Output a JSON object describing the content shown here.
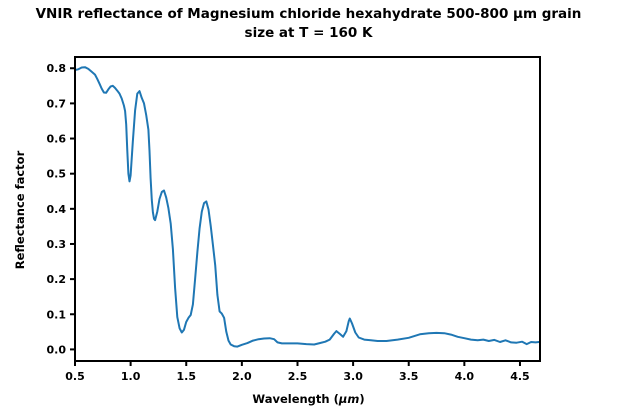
{
  "figure": {
    "title_line1": "VNIR reflectance of Magnesium chloride hexahydrate 500-800 μm grain",
    "title_line2": "size at T = 160 K"
  },
  "chart_data": {
    "type": "line",
    "title": "VNIR reflectance of Magnesium chloride hexahydrate 500-800 μm grain size at T = 160 K",
    "xlabel": "Wavelength (μm)",
    "xlabel_parts": {
      "prefix": "Wavelength (",
      "italic": "μm",
      "suffix": ")"
    },
    "ylabel": "Reflectance factor",
    "xlim": [
      0.5,
      4.68
    ],
    "ylim": [
      -0.033,
      0.832
    ],
    "xticks": [
      0.5,
      1.0,
      1.5,
      2.0,
      2.5,
      3.0,
      3.5,
      4.0,
      4.5
    ],
    "xtick_labels": [
      "0.5",
      "1.0",
      "1.5",
      "2.0",
      "2.5",
      "3.0",
      "3.5",
      "4.0",
      "4.5"
    ],
    "yticks": [
      0.0,
      0.1,
      0.2,
      0.3,
      0.4,
      0.5,
      0.6,
      0.7,
      0.8
    ],
    "ytick_labels": [
      "0.0",
      "0.1",
      "0.2",
      "0.3",
      "0.4",
      "0.5",
      "0.6",
      "0.7",
      "0.8"
    ],
    "grid": false,
    "legend": null,
    "line_color": "#1f77b4",
    "line_width": 2,
    "axis_color": "#000000",
    "series": [
      {
        "name": "reflectance",
        "points": [
          [
            0.5,
            0.795
          ],
          [
            0.53,
            0.797
          ],
          [
            0.56,
            0.802
          ],
          [
            0.59,
            0.803
          ],
          [
            0.62,
            0.798
          ],
          [
            0.65,
            0.79
          ],
          [
            0.68,
            0.782
          ],
          [
            0.7,
            0.77
          ],
          [
            0.72,
            0.756
          ],
          [
            0.74,
            0.742
          ],
          [
            0.76,
            0.731
          ],
          [
            0.78,
            0.73
          ],
          [
            0.8,
            0.74
          ],
          [
            0.82,
            0.748
          ],
          [
            0.84,
            0.75
          ],
          [
            0.86,
            0.744
          ],
          [
            0.88,
            0.736
          ],
          [
            0.9,
            0.728
          ],
          [
            0.92,
            0.714
          ],
          [
            0.94,
            0.694
          ],
          [
            0.95,
            0.678
          ],
          [
            0.96,
            0.64
          ],
          [
            0.97,
            0.565
          ],
          [
            0.98,
            0.5
          ],
          [
            0.99,
            0.478
          ],
          [
            1.0,
            0.495
          ],
          [
            1.02,
            0.59
          ],
          [
            1.04,
            0.68
          ],
          [
            1.06,
            0.728
          ],
          [
            1.08,
            0.735
          ],
          [
            1.1,
            0.716
          ],
          [
            1.12,
            0.7
          ],
          [
            1.14,
            0.667
          ],
          [
            1.16,
            0.625
          ],
          [
            1.17,
            0.565
          ],
          [
            1.18,
            0.487
          ],
          [
            1.19,
            0.425
          ],
          [
            1.2,
            0.39
          ],
          [
            1.21,
            0.372
          ],
          [
            1.22,
            0.368
          ],
          [
            1.24,
            0.392
          ],
          [
            1.26,
            0.428
          ],
          [
            1.28,
            0.448
          ],
          [
            1.3,
            0.452
          ],
          [
            1.32,
            0.432
          ],
          [
            1.34,
            0.402
          ],
          [
            1.36,
            0.358
          ],
          [
            1.38,
            0.285
          ],
          [
            1.4,
            0.175
          ],
          [
            1.42,
            0.092
          ],
          [
            1.44,
            0.06
          ],
          [
            1.46,
            0.048
          ],
          [
            1.48,
            0.056
          ],
          [
            1.5,
            0.078
          ],
          [
            1.52,
            0.09
          ],
          [
            1.54,
            0.098
          ],
          [
            1.56,
            0.128
          ],
          [
            1.58,
            0.2
          ],
          [
            1.6,
            0.278
          ],
          [
            1.62,
            0.345
          ],
          [
            1.64,
            0.392
          ],
          [
            1.66,
            0.416
          ],
          [
            1.68,
            0.421
          ],
          [
            1.7,
            0.398
          ],
          [
            1.72,
            0.352
          ],
          [
            1.74,
            0.298
          ],
          [
            1.76,
            0.24
          ],
          [
            1.78,
            0.155
          ],
          [
            1.8,
            0.108
          ],
          [
            1.82,
            0.102
          ],
          [
            1.84,
            0.09
          ],
          [
            1.86,
            0.05
          ],
          [
            1.88,
            0.025
          ],
          [
            1.9,
            0.014
          ],
          [
            1.93,
            0.009
          ],
          [
            1.96,
            0.008
          ],
          [
            2.0,
            0.013
          ],
          [
            2.05,
            0.018
          ],
          [
            2.1,
            0.025
          ],
          [
            2.15,
            0.029
          ],
          [
            2.2,
            0.031
          ],
          [
            2.25,
            0.032
          ],
          [
            2.29,
            0.029
          ],
          [
            2.32,
            0.02
          ],
          [
            2.36,
            0.017
          ],
          [
            2.42,
            0.017
          ],
          [
            2.5,
            0.017
          ],
          [
            2.58,
            0.015
          ],
          [
            2.65,
            0.014
          ],
          [
            2.7,
            0.018
          ],
          [
            2.75,
            0.022
          ],
          [
            2.79,
            0.028
          ],
          [
            2.83,
            0.045
          ],
          [
            2.85,
            0.052
          ],
          [
            2.88,
            0.044
          ],
          [
            2.91,
            0.036
          ],
          [
            2.94,
            0.052
          ],
          [
            2.96,
            0.08
          ],
          [
            2.97,
            0.088
          ],
          [
            2.99,
            0.074
          ],
          [
            3.02,
            0.048
          ],
          [
            3.05,
            0.034
          ],
          [
            3.1,
            0.028
          ],
          [
            3.16,
            0.026
          ],
          [
            3.22,
            0.024
          ],
          [
            3.3,
            0.024
          ],
          [
            3.4,
            0.028
          ],
          [
            3.5,
            0.033
          ],
          [
            3.6,
            0.043
          ],
          [
            3.68,
            0.046
          ],
          [
            3.75,
            0.047
          ],
          [
            3.82,
            0.046
          ],
          [
            3.88,
            0.042
          ],
          [
            3.94,
            0.036
          ],
          [
            4.0,
            0.032
          ],
          [
            4.06,
            0.028
          ],
          [
            4.12,
            0.026
          ],
          [
            4.17,
            0.028
          ],
          [
            4.22,
            0.024
          ],
          [
            4.27,
            0.027
          ],
          [
            4.32,
            0.021
          ],
          [
            4.37,
            0.026
          ],
          [
            4.42,
            0.02
          ],
          [
            4.47,
            0.019
          ],
          [
            4.52,
            0.022
          ],
          [
            4.56,
            0.015
          ],
          [
            4.6,
            0.021
          ],
          [
            4.64,
            0.02
          ],
          [
            4.67,
            0.021
          ]
        ]
      }
    ]
  }
}
